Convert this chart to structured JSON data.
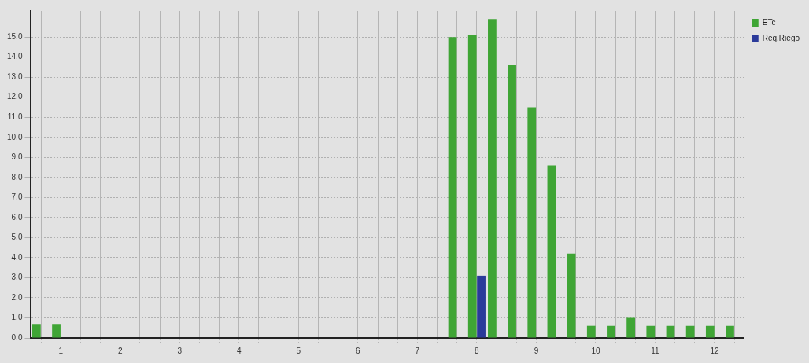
{
  "chart_data": {
    "type": "bar",
    "categories": [
      null,
      "1",
      null,
      null,
      "2",
      null,
      null,
      "3",
      null,
      null,
      "4",
      null,
      null,
      "5",
      null,
      null,
      "6",
      null,
      null,
      "7",
      null,
      null,
      "8",
      null,
      null,
      "9",
      null,
      null,
      "10",
      null,
      null,
      "11",
      null,
      null,
      "12",
      null
    ],
    "series": [
      {
        "name": "ETc",
        "color": "#3fa535",
        "values": [
          0.7,
          0.7,
          null,
          null,
          null,
          null,
          null,
          null,
          null,
          null,
          null,
          null,
          null,
          null,
          null,
          null,
          null,
          null,
          null,
          null,
          null,
          15.0,
          15.1,
          15.9,
          13.6,
          11.5,
          8.6,
          4.2,
          0.6,
          0.6,
          1.0,
          0.6,
          0.6,
          0.6,
          0.6,
          0.6
        ]
      },
      {
        "name": "Req.Riego",
        "color": "#2b3a9a",
        "values": [
          0,
          0,
          null,
          null,
          null,
          null,
          null,
          null,
          null,
          null,
          null,
          null,
          null,
          null,
          null,
          null,
          null,
          null,
          null,
          null,
          null,
          0,
          3.1,
          0,
          0,
          0,
          0,
          0,
          0,
          0,
          0,
          0,
          0,
          0,
          0,
          0
        ]
      }
    ],
    "ylim": [
      0,
      16.3
    ],
    "yticks": [
      {
        "value": 0,
        "label": "0.0"
      },
      {
        "value": 1,
        "label": "1.0"
      },
      {
        "value": 2,
        "label": "2.0"
      },
      {
        "value": 3,
        "label": "3.0"
      },
      {
        "value": 4,
        "label": "4.0"
      },
      {
        "value": 5,
        "label": "5.0"
      },
      {
        "value": 6,
        "label": "6.0"
      },
      {
        "value": 7,
        "label": "7.0"
      },
      {
        "value": 8,
        "label": "8.0"
      },
      {
        "value": 9,
        "label": "9.0"
      },
      {
        "value": 10,
        "label": "10.0"
      },
      {
        "value": 11,
        "label": "11.0"
      },
      {
        "value": 12,
        "label": "12.0"
      },
      {
        "value": 13,
        "label": "13.0"
      },
      {
        "value": 14,
        "label": "14.0"
      },
      {
        "value": 15,
        "label": "15.0"
      }
    ],
    "grid": true,
    "legend": "top right"
  }
}
